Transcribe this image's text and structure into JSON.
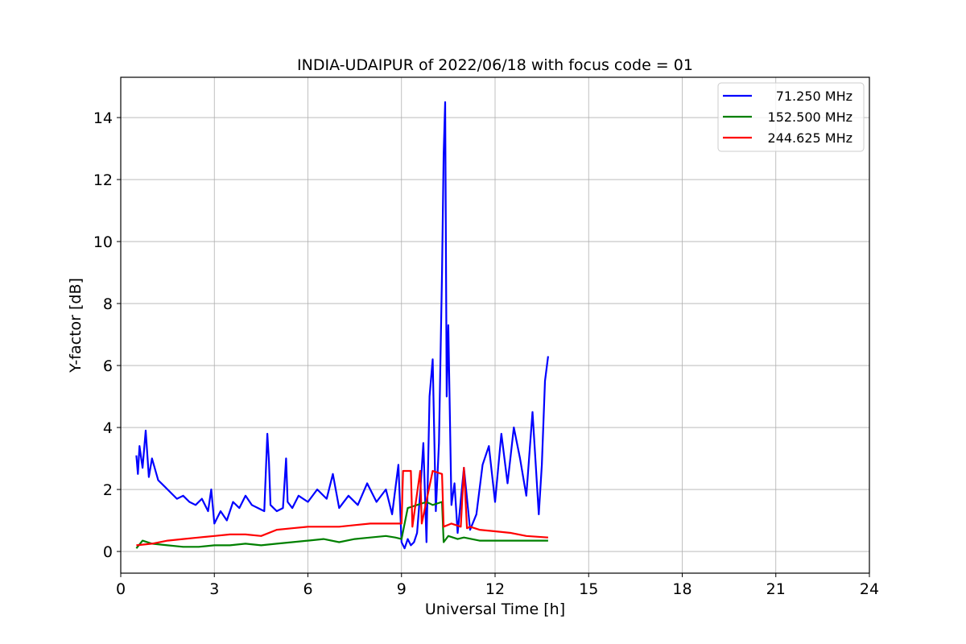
{
  "chart_data": {
    "type": "line",
    "title": "INDIA-UDAIPUR of 2022/06/18 with focus code = 01",
    "xlabel": "Universal Time [h]",
    "ylabel": "Y-factor [dB]",
    "xlim": [
      0,
      24
    ],
    "ylim": [
      -0.7,
      15.3
    ],
    "xticks": [
      0,
      3,
      6,
      9,
      12,
      15,
      18,
      21,
      24
    ],
    "yticks": [
      0,
      2,
      4,
      6,
      8,
      10,
      12,
      14
    ],
    "grid": true,
    "legend_position": "top-right",
    "series": [
      {
        "name": " 71.250 MHz",
        "color": "#0000ff",
        "x": [
          0.5,
          0.55,
          0.6,
          0.7,
          0.8,
          0.9,
          1.0,
          1.2,
          1.4,
          1.6,
          1.8,
          2.0,
          2.2,
          2.4,
          2.6,
          2.8,
          2.9,
          3.0,
          3.2,
          3.4,
          3.6,
          3.8,
          4.0,
          4.2,
          4.4,
          4.6,
          4.7,
          4.75,
          4.8,
          5.0,
          5.2,
          5.3,
          5.35,
          5.5,
          5.7,
          6.0,
          6.3,
          6.6,
          6.8,
          7.0,
          7.3,
          7.6,
          7.9,
          8.2,
          8.5,
          8.7,
          8.9,
          9.0,
          9.1,
          9.2,
          9.3,
          9.4,
          9.5,
          9.6,
          9.7,
          9.8,
          9.9,
          10.0,
          10.1,
          10.2,
          10.3,
          10.35,
          10.4,
          10.45,
          10.5,
          10.6,
          10.7,
          10.8,
          11.0,
          11.2,
          11.4,
          11.6,
          11.8,
          12.0,
          12.2,
          12.4,
          12.6,
          12.8,
          13.0,
          13.2,
          13.4,
          13.5,
          13.6,
          13.7
        ],
        "values": [
          3.1,
          2.5,
          3.4,
          2.7,
          3.9,
          2.4,
          3.0,
          2.3,
          2.1,
          1.9,
          1.7,
          1.8,
          1.6,
          1.5,
          1.7,
          1.3,
          2.0,
          0.9,
          1.3,
          1.0,
          1.6,
          1.4,
          1.8,
          1.5,
          1.4,
          1.3,
          3.8,
          2.9,
          1.5,
          1.3,
          1.4,
          3.0,
          1.6,
          1.4,
          1.8,
          1.6,
          2.0,
          1.7,
          2.5,
          1.4,
          1.8,
          1.5,
          2.2,
          1.6,
          2.0,
          1.2,
          2.8,
          0.3,
          0.1,
          0.4,
          0.2,
          0.3,
          0.6,
          1.9,
          3.5,
          0.3,
          5.0,
          6.2,
          1.3,
          3.5,
          9.0,
          12.8,
          14.5,
          5.0,
          7.3,
          1.5,
          2.2,
          0.6,
          2.7,
          0.7,
          1.2,
          2.8,
          3.4,
          1.6,
          3.8,
          2.2,
          4.0,
          3.0,
          1.8,
          4.5,
          1.2,
          2.8,
          5.5,
          6.3
        ]
      },
      {
        "name": "152.500 MHz",
        "color": "#008000",
        "x": [
          0.5,
          0.7,
          1.0,
          1.5,
          2.0,
          2.5,
          3.0,
          3.5,
          4.0,
          4.5,
          5.0,
          5.5,
          6.0,
          6.5,
          7.0,
          7.5,
          8.0,
          8.5,
          8.8,
          9.0,
          9.2,
          9.5,
          9.8,
          10.0,
          10.3,
          10.35,
          10.5,
          10.8,
          11.0,
          11.5,
          12.0,
          12.5,
          13.0,
          13.5,
          13.7
        ],
        "values": [
          0.1,
          0.35,
          0.25,
          0.2,
          0.15,
          0.15,
          0.2,
          0.2,
          0.25,
          0.2,
          0.25,
          0.3,
          0.35,
          0.4,
          0.3,
          0.4,
          0.45,
          0.5,
          0.45,
          0.4,
          1.4,
          1.5,
          1.6,
          1.5,
          1.6,
          0.3,
          0.5,
          0.4,
          0.45,
          0.35,
          0.35,
          0.35,
          0.35,
          0.35,
          0.35
        ]
      },
      {
        "name": "244.625 MHz",
        "color": "#ff0000",
        "x": [
          0.5,
          1.0,
          1.5,
          2.0,
          2.5,
          3.0,
          3.5,
          4.0,
          4.5,
          5.0,
          5.5,
          6.0,
          6.5,
          7.0,
          7.5,
          8.0,
          8.5,
          9.0,
          9.05,
          9.3,
          9.35,
          9.6,
          9.65,
          10.0,
          10.3,
          10.35,
          10.6,
          10.9,
          11.0,
          11.1,
          11.2,
          11.5,
          12.0,
          12.5,
          13.0,
          13.7
        ],
        "values": [
          0.2,
          0.25,
          0.35,
          0.4,
          0.45,
          0.5,
          0.55,
          0.55,
          0.5,
          0.7,
          0.75,
          0.8,
          0.8,
          0.8,
          0.85,
          0.9,
          0.9,
          0.9,
          2.6,
          2.6,
          0.8,
          2.6,
          0.9,
          2.6,
          2.5,
          0.8,
          0.9,
          0.8,
          2.7,
          0.75,
          0.8,
          0.7,
          0.65,
          0.6,
          0.5,
          0.45
        ]
      }
    ]
  }
}
